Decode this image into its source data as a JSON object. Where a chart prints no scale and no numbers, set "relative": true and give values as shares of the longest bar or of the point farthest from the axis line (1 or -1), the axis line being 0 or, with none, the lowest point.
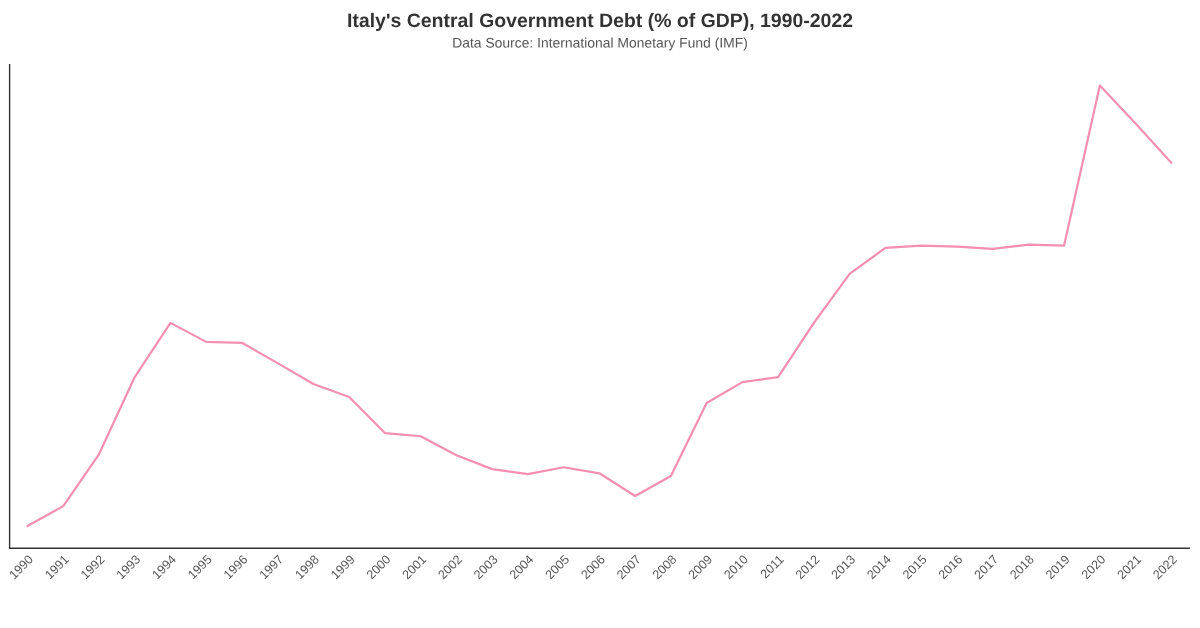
{
  "chart_data": {
    "type": "line",
    "title": "Italy's Central Government Debt (% of GDP), 1990-2022",
    "subtitle": "Data Source: International Monetary Fund (IMF)",
    "relative": true,
    "grid": false,
    "legend": false,
    "marker": "none",
    "line_style": "solid",
    "categories": [
      "1990",
      "1991",
      "1992",
      "1993",
      "1994",
      "1995",
      "1996",
      "1997",
      "1998",
      "1999",
      "2000",
      "2001",
      "2002",
      "2003",
      "2004",
      "2005",
      "2006",
      "2007",
      "2008",
      "2009",
      "2010",
      "2011",
      "2012",
      "2013",
      "2014",
      "2015",
      "2016",
      "2017",
      "2018",
      "2019",
      "2020",
      "2021",
      "2022"
    ],
    "series": [
      {
        "color": "#f48fb1",
        "values": [
          0.048,
          0.091,
          0.203,
          0.37,
          0.487,
          0.446,
          0.444,
          0.4,
          0.355,
          0.327,
          0.249,
          0.242,
          0.201,
          0.171,
          0.16,
          0.175,
          0.162,
          0.113,
          0.156,
          0.314,
          0.359,
          0.37,
          0.487,
          0.593,
          0.649,
          0.654,
          0.652,
          0.647,
          0.656,
          0.654,
          1,
          0.918,
          0.833
        ]
      }
    ]
  }
}
